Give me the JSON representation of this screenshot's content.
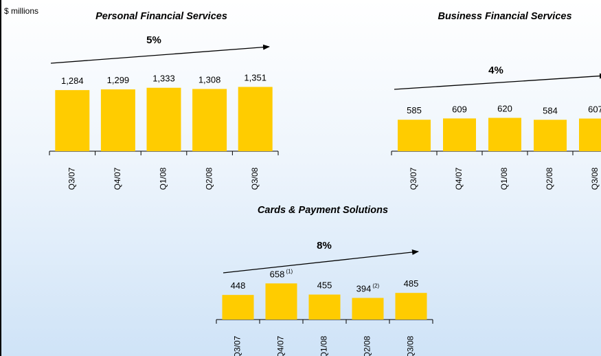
{
  "units": "$ millions",
  "chart_data": [
    {
      "type": "bar",
      "title": "Personal Financial Services",
      "annotation": "5%",
      "categories": [
        "Q3/07",
        "Q4/07",
        "Q1/08",
        "Q2/08",
        "Q3/08"
      ],
      "values": [
        1284,
        1299,
        1333,
        1308,
        1351
      ],
      "value_labels": [
        "1,284",
        "1,299",
        "1,333",
        "1,308",
        "1,351"
      ],
      "color": "#ffcc00",
      "ylim": [
        0,
        2600
      ]
    },
    {
      "type": "bar",
      "title": "Business Financial Services",
      "annotation": "4%",
      "categories": [
        "Q3/07",
        "Q4/07",
        "Q1/08",
        "Q2/08",
        "Q3/08"
      ],
      "values": [
        585,
        609,
        620,
        584,
        607
      ],
      "color": "#ffcc00",
      "ylim": [
        0,
        2300
      ]
    },
    {
      "type": "bar",
      "title": "Cards & Payment Solutions",
      "annotation": "8%",
      "categories": [
        "Q3/07",
        "Q4/07",
        "Q1/08",
        "Q2/08",
        "Q3/08"
      ],
      "values": [
        448,
        658,
        455,
        394,
        485
      ],
      "notes": [
        null,
        "(1)",
        null,
        "(2)",
        null
      ],
      "color": "#ffcc00",
      "ylim": [
        0,
        1250
      ]
    }
  ]
}
